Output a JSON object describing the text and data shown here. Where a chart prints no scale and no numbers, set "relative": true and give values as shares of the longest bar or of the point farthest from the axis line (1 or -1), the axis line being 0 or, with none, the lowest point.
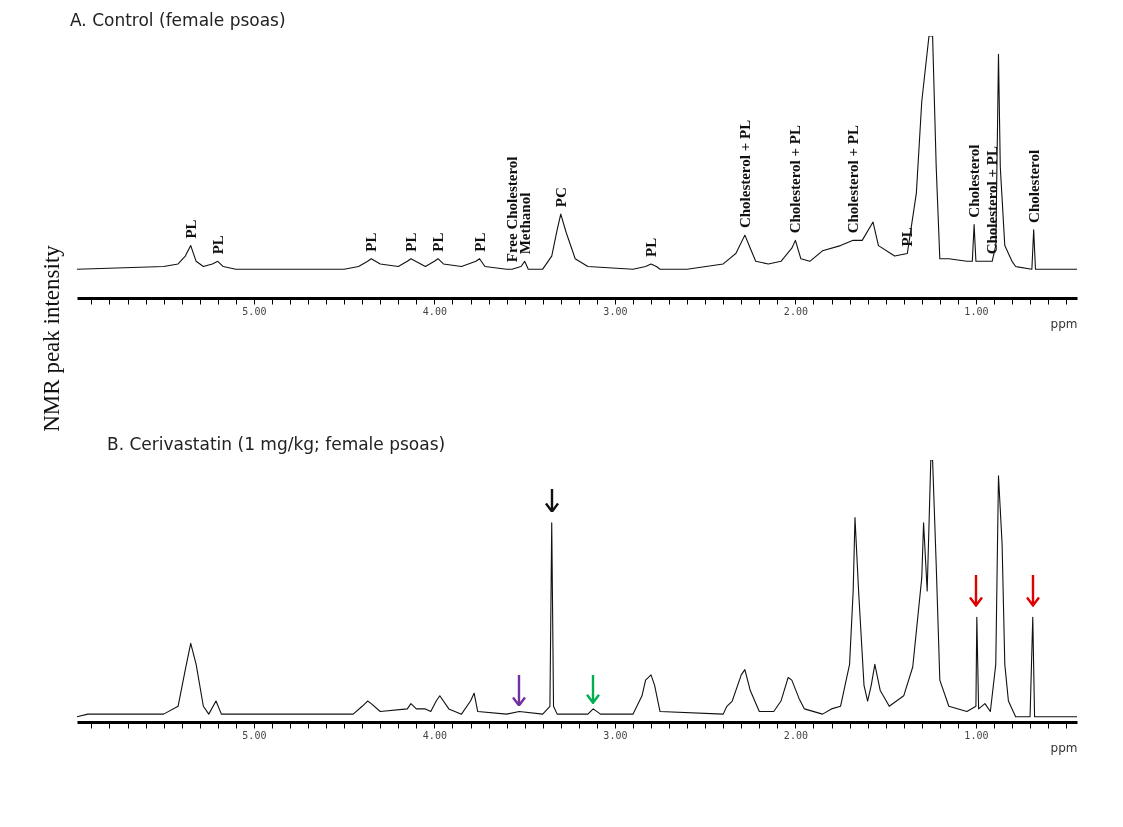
{
  "chart_data": [
    {
      "type": "line",
      "title": "A. Control (female psoas)",
      "xlabel": "ppm",
      "ylabel": "NMR peak intensity",
      "relative": true,
      "color": "#111111",
      "xlim": [
        5.98,
        0.44
      ],
      "xticks": [
        {
          "value": 5.9,
          "label": null
        },
        {
          "value": 5.8,
          "label": null
        },
        {
          "value": 5.7,
          "label": null
        },
        {
          "value": 5.6,
          "label": null
        },
        {
          "value": 5.5,
          "label": null
        },
        {
          "value": 5.4,
          "label": null
        },
        {
          "value": 5.3,
          "label": null
        },
        {
          "value": 5.2,
          "label": null
        },
        {
          "value": 5.1,
          "label": null
        },
        {
          "value": 5,
          "label": "5.00"
        },
        {
          "value": 4.9,
          "label": null
        },
        {
          "value": 4.8,
          "label": null
        },
        {
          "value": 4.7,
          "label": null
        },
        {
          "value": 4.6,
          "label": null
        },
        {
          "value": 4.5,
          "label": null
        },
        {
          "value": 4.4,
          "label": null
        },
        {
          "value": 4.3,
          "label": null
        },
        {
          "value": 4.2,
          "label": null
        },
        {
          "value": 4.1,
          "label": null
        },
        {
          "value": 4,
          "label": "4.00"
        },
        {
          "value": 3.9,
          "label": null
        },
        {
          "value": 3.8,
          "label": null
        },
        {
          "value": 3.7,
          "label": null
        },
        {
          "value": 3.6,
          "label": null
        },
        {
          "value": 3.5,
          "label": null
        },
        {
          "value": 3.4,
          "label": null
        },
        {
          "value": 3.3,
          "label": null
        },
        {
          "value": 3.2,
          "label": null
        },
        {
          "value": 3.1,
          "label": null
        },
        {
          "value": 3,
          "label": "3.00"
        },
        {
          "value": 2.9,
          "label": null
        },
        {
          "value": 2.8,
          "label": null
        },
        {
          "value": 2.7,
          "label": null
        },
        {
          "value": 2.6,
          "label": null
        },
        {
          "value": 2.5,
          "label": null
        },
        {
          "value": 2.4,
          "label": null
        },
        {
          "value": 2.3,
          "label": null
        },
        {
          "value": 2.2,
          "label": null
        },
        {
          "value": 2.1,
          "label": null
        },
        {
          "value": 2,
          "label": "2.00"
        },
        {
          "value": 1.9,
          "label": null
        },
        {
          "value": 1.8,
          "label": null
        },
        {
          "value": 1.7,
          "label": null
        },
        {
          "value": 1.6,
          "label": null
        },
        {
          "value": 1.5,
          "label": null
        },
        {
          "value": 1.4,
          "label": null
        },
        {
          "value": 1.3,
          "label": null
        },
        {
          "value": 1.2,
          "label": null
        },
        {
          "value": 1.1,
          "label": null
        },
        {
          "value": 1,
          "label": "1.00"
        },
        {
          "value": 0.9,
          "label": null
        },
        {
          "value": 0.8,
          "label": null
        },
        {
          "value": 0.7,
          "label": null
        },
        {
          "value": 0.6,
          "label": null
        },
        {
          "value": 0.5,
          "label": null
        }
      ],
      "x": [
        5.98,
        5.5,
        5.42,
        5.38,
        5.35,
        5.32,
        5.28,
        5.23,
        5.2,
        5.17,
        5.1,
        4.5,
        4.42,
        4.37,
        4.35,
        4.3,
        4.2,
        4.15,
        4.13,
        4.05,
        4.0,
        3.98,
        3.95,
        3.85,
        3.77,
        3.75,
        3.72,
        3.6,
        3.57,
        3.52,
        3.5,
        3.48,
        3.4,
        3.35,
        3.32,
        3.3,
        3.27,
        3.22,
        3.15,
        2.9,
        2.83,
        2.8,
        2.77,
        2.75,
        2.6,
        2.4,
        2.33,
        2.28,
        2.25,
        2.22,
        2.15,
        2.08,
        2.02,
        2.0,
        1.97,
        1.92,
        1.85,
        1.75,
        1.68,
        1.63,
        1.57,
        1.54,
        1.45,
        1.38,
        1.33,
        1.3,
        1.26,
        1.24,
        1.22,
        1.2,
        1.15,
        1.05,
        1.02,
        1.01,
        1.0,
        0.92,
        0.91,
        0.89,
        0.88,
        0.875,
        0.865,
        0.84,
        0.8,
        0.78,
        0.69,
        0.68,
        0.67,
        0.44
      ],
      "values": [
        0.11,
        0.12,
        0.13,
        0.16,
        0.2,
        0.14,
        0.12,
        0.13,
        0.14,
        0.12,
        0.11,
        0.11,
        0.12,
        0.14,
        0.15,
        0.13,
        0.12,
        0.14,
        0.15,
        0.12,
        0.14,
        0.15,
        0.13,
        0.12,
        0.14,
        0.15,
        0.12,
        0.11,
        0.11,
        0.12,
        0.14,
        0.11,
        0.11,
        0.16,
        0.26,
        0.32,
        0.25,
        0.15,
        0.12,
        0.11,
        0.12,
        0.13,
        0.12,
        0.11,
        0.11,
        0.13,
        0.17,
        0.24,
        0.19,
        0.14,
        0.13,
        0.14,
        0.19,
        0.22,
        0.15,
        0.14,
        0.18,
        0.2,
        0.22,
        0.22,
        0.29,
        0.2,
        0.16,
        0.17,
        0.4,
        0.75,
        1,
        1,
        0.5,
        0.15,
        0.15,
        0.14,
        0.14,
        0.28,
        0.14,
        0.14,
        0.14,
        0.2,
        0.67,
        0.93,
        0.5,
        0.2,
        0.14,
        0.12,
        0.11,
        0.26,
        0.11,
        0.11
      ],
      "annotations": [
        {
          "text": "PL",
          "x": 5.35,
          "y": 0.2
        },
        {
          "text": "PL",
          "x": 5.2,
          "y": 0.14
        },
        {
          "text": "PL",
          "x": 4.35,
          "y": 0.15
        },
        {
          "text": "PL",
          "x": 4.13,
          "y": 0.15
        },
        {
          "text": "PL",
          "x": 3.98,
          "y": 0.15
        },
        {
          "text": "PL",
          "x": 3.75,
          "y": 0.15
        },
        {
          "text": "Free Cholesterol",
          "x": 3.57,
          "y": 0.11
        },
        {
          "text": "Methanol",
          "x": 3.5,
          "y": 0.14
        },
        {
          "text": "PC",
          "x": 3.3,
          "y": 0.32
        },
        {
          "text": "PL",
          "x": 2.8,
          "y": 0.13
        },
        {
          "text": "Cholesterol + PL",
          "x": 2.28,
          "y": 0.24
        },
        {
          "text": "Cholesterol + PL",
          "x": 2.0,
          "y": 0.22
        },
        {
          "text": "Cholesterol + PL",
          "x": 1.68,
          "y": 0.22
        },
        {
          "text": "PL",
          "x": 1.38,
          "y": 0.17
        },
        {
          "text": "Cholesterol",
          "x": 1.01,
          "y": 0.28
        },
        {
          "text": "Cholesterol + PL",
          "x": 0.91,
          "y": 0.14
        },
        {
          "text": "Cholesterol",
          "x": 0.68,
          "y": 0.26
        }
      ]
    },
    {
      "type": "line",
      "title": "B. Cerivastatin (1 mg/kg; female psoas)",
      "xlabel": "ppm",
      "relative": true,
      "color": "#111111",
      "xlim": [
        5.98,
        0.44
      ],
      "xticks": [
        {
          "value": 5.9,
          "label": null
        },
        {
          "value": 5.8,
          "label": null
        },
        {
          "value": 5.7,
          "label": null
        },
        {
          "value": 5.6,
          "label": null
        },
        {
          "value": 5.5,
          "label": null
        },
        {
          "value": 5.4,
          "label": null
        },
        {
          "value": 5.3,
          "label": null
        },
        {
          "value": 5.2,
          "label": null
        },
        {
          "value": 5.1,
          "label": null
        },
        {
          "value": 5,
          "label": "5.00"
        },
        {
          "value": 4.9,
          "label": null
        },
        {
          "value": 4.8,
          "label": null
        },
        {
          "value": 4.7,
          "label": null
        },
        {
          "value": 4.6,
          "label": null
        },
        {
          "value": 4.5,
          "label": null
        },
        {
          "value": 4.4,
          "label": null
        },
        {
          "value": 4.3,
          "label": null
        },
        {
          "value": 4.2,
          "label": null
        },
        {
          "value": 4.1,
          "label": null
        },
        {
          "value": 4,
          "label": "4.00"
        },
        {
          "value": 3.9,
          "label": null
        },
        {
          "value": 3.8,
          "label": null
        },
        {
          "value": 3.7,
          "label": null
        },
        {
          "value": 3.6,
          "label": null
        },
        {
          "value": 3.5,
          "label": null
        },
        {
          "value": 3.4,
          "label": null
        },
        {
          "value": 3.3,
          "label": null
        },
        {
          "value": 3.2,
          "label": null
        },
        {
          "value": 3.1,
          "label": null
        },
        {
          "value": 3,
          "label": "3.00"
        },
        {
          "value": 2.9,
          "label": null
        },
        {
          "value": 2.8,
          "label": null
        },
        {
          "value": 2.7,
          "label": null
        },
        {
          "value": 2.6,
          "label": null
        },
        {
          "value": 2.5,
          "label": null
        },
        {
          "value": 2.4,
          "label": null
        },
        {
          "value": 2.3,
          "label": null
        },
        {
          "value": 2.2,
          "label": null
        },
        {
          "value": 2.1,
          "label": null
        },
        {
          "value": 2,
          "label": "2.00"
        },
        {
          "value": 1.9,
          "label": null
        },
        {
          "value": 1.8,
          "label": null
        },
        {
          "value": 1.7,
          "label": null
        },
        {
          "value": 1.6,
          "label": null
        },
        {
          "value": 1.5,
          "label": null
        },
        {
          "value": 1.4,
          "label": null
        },
        {
          "value": 1.3,
          "label": null
        },
        {
          "value": 1.2,
          "label": null
        },
        {
          "value": 1.1,
          "label": null
        },
        {
          "value": 1,
          "label": "1.00"
        },
        {
          "value": 0.9,
          "label": null
        },
        {
          "value": 0.8,
          "label": null
        },
        {
          "value": 0.7,
          "label": null
        },
        {
          "value": 0.6,
          "label": null
        },
        {
          "value": 0.5,
          "label": null
        }
      ],
      "x": [
        5.98,
        5.92,
        5.5,
        5.42,
        5.38,
        5.35,
        5.32,
        5.28,
        5.25,
        5.21,
        5.18,
        4.45,
        4.4,
        4.37,
        4.35,
        4.3,
        4.15,
        4.13,
        4.1,
        4.05,
        4.02,
        3.99,
        3.97,
        3.92,
        3.85,
        3.8,
        3.78,
        3.76,
        3.6,
        3.53,
        3.4,
        3.36,
        3.35,
        3.34,
        3.32,
        3.15,
        3.12,
        3.08,
        2.9,
        2.85,
        2.83,
        2.8,
        2.78,
        2.75,
        2.4,
        2.38,
        2.35,
        2.3,
        2.28,
        2.25,
        2.2,
        2.12,
        2.08,
        2.04,
        2.02,
        1.98,
        1.95,
        1.85,
        1.8,
        1.75,
        1.7,
        1.68,
        1.67,
        1.65,
        1.62,
        1.6,
        1.58,
        1.56,
        1.53,
        1.48,
        1.4,
        1.35,
        1.3,
        1.29,
        1.27,
        1.25,
        1.24,
        1.22,
        1.2,
        1.15,
        1.05,
        1.0,
        0.995,
        0.985,
        0.95,
        0.92,
        0.89,
        0.875,
        0.865,
        0.855,
        0.84,
        0.82,
        0.78,
        0.7,
        0.685,
        0.675,
        0.44
      ],
      "values": [
        0.02,
        0.03,
        0.03,
        0.06,
        0.2,
        0.3,
        0.22,
        0.06,
        0.03,
        0.08,
        0.03,
        0.03,
        0.06,
        0.08,
        0.07,
        0.04,
        0.05,
        0.07,
        0.05,
        0.05,
        0.04,
        0.08,
        0.1,
        0.05,
        0.03,
        0.08,
        0.11,
        0.04,
        0.03,
        0.04,
        0.03,
        0.06,
        0.76,
        0.06,
        0.03,
        0.03,
        0.05,
        0.03,
        0.03,
        0.1,
        0.16,
        0.18,
        0.14,
        0.04,
        0.03,
        0.06,
        0.08,
        0.18,
        0.2,
        0.12,
        0.04,
        0.04,
        0.08,
        0.17,
        0.16,
        0.09,
        0.05,
        0.03,
        0.05,
        0.06,
        0.22,
        0.5,
        0.78,
        0.5,
        0.14,
        0.08,
        0.14,
        0.22,
        0.12,
        0.06,
        0.1,
        0.21,
        0.55,
        0.76,
        0.5,
        1,
        1,
        0.6,
        0.16,
        0.06,
        0.04,
        0.06,
        0.4,
        0.05,
        0.07,
        0.04,
        0.22,
        0.94,
        0.81,
        0.68,
        0.22,
        0.08,
        0.02,
        0.02,
        0.4,
        0.02,
        0.02
      ]
    }
  ]
}
